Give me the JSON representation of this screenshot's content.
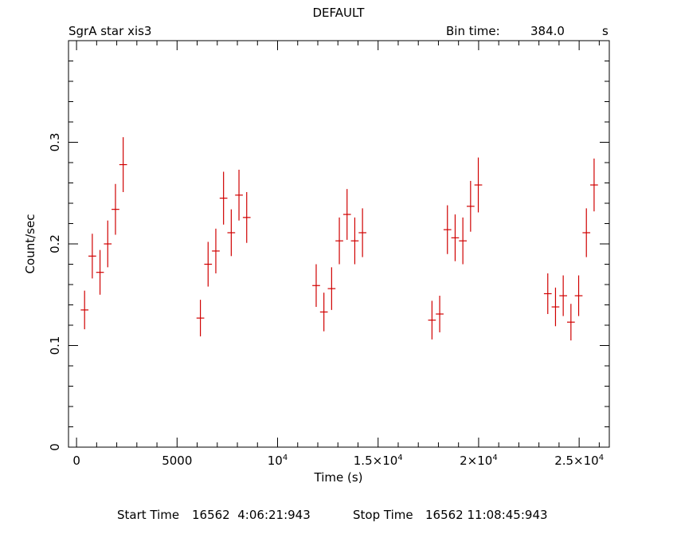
{
  "header": {
    "title": "DEFAULT",
    "source": "SgrA star xis3",
    "bin_time_label": "Bin time:",
    "bin_time_value": "384.0",
    "bin_time_unit": "s"
  },
  "footer": {
    "start_label": "Start Time",
    "start_value": "16562  4:06:21:943",
    "stop_label": "Stop Time",
    "stop_value": "16562 11:08:45:943"
  },
  "colors": {
    "data": "#d00000",
    "axis": "#000000"
  },
  "chart_data": {
    "type": "scatter",
    "title": "DEFAULT",
    "xlabel": "Time (s)",
    "ylabel": "Count/sec",
    "xlim": [
      -400,
      26500
    ],
    "ylim": [
      0,
      0.4
    ],
    "grid": false,
    "x_ticks": [
      {
        "value": 0,
        "label": "0"
      },
      {
        "value": 5000,
        "label": "5000"
      },
      {
        "value": 10000,
        "label": "10",
        "sup": "4"
      },
      {
        "value": 15000,
        "label": "1.5×10",
        "sup": "4"
      },
      {
        "value": 20000,
        "label": "2×10",
        "sup": "4"
      },
      {
        "value": 25000,
        "label": "2.5×10",
        "sup": "4"
      }
    ],
    "y_ticks": [
      {
        "value": 0,
        "label": "0"
      },
      {
        "value": 0.1,
        "label": "0.1"
      },
      {
        "value": 0.2,
        "label": "0.2"
      },
      {
        "value": 0.3,
        "label": "0.3"
      }
    ],
    "x_error": 192,
    "points": [
      {
        "x": 400,
        "y": 0.135,
        "yerr": 0.019
      },
      {
        "x": 784,
        "y": 0.188,
        "yerr": 0.022
      },
      {
        "x": 1168,
        "y": 0.172,
        "yerr": 0.022
      },
      {
        "x": 1552,
        "y": 0.2,
        "yerr": 0.023
      },
      {
        "x": 1936,
        "y": 0.234,
        "yerr": 0.025
      },
      {
        "x": 2320,
        "y": 0.278,
        "yerr": 0.027
      },
      {
        "x": 6160,
        "y": 0.127,
        "yerr": 0.018
      },
      {
        "x": 6544,
        "y": 0.18,
        "yerr": 0.022
      },
      {
        "x": 6928,
        "y": 0.193,
        "yerr": 0.022
      },
      {
        "x": 7312,
        "y": 0.245,
        "yerr": 0.026
      },
      {
        "x": 7696,
        "y": 0.211,
        "yerr": 0.023
      },
      {
        "x": 8080,
        "y": 0.248,
        "yerr": 0.025
      },
      {
        "x": 8464,
        "y": 0.226,
        "yerr": 0.025
      },
      {
        "x": 11920,
        "y": 0.159,
        "yerr": 0.021
      },
      {
        "x": 12304,
        "y": 0.133,
        "yerr": 0.019
      },
      {
        "x": 12688,
        "y": 0.156,
        "yerr": 0.021
      },
      {
        "x": 13072,
        "y": 0.203,
        "yerr": 0.023
      },
      {
        "x": 13456,
        "y": 0.229,
        "yerr": 0.025
      },
      {
        "x": 13840,
        "y": 0.203,
        "yerr": 0.023
      },
      {
        "x": 14224,
        "y": 0.211,
        "yerr": 0.024
      },
      {
        "x": 17680,
        "y": 0.125,
        "yerr": 0.019
      },
      {
        "x": 18064,
        "y": 0.131,
        "yerr": 0.018
      },
      {
        "x": 18448,
        "y": 0.214,
        "yerr": 0.024
      },
      {
        "x": 18832,
        "y": 0.206,
        "yerr": 0.023
      },
      {
        "x": 19216,
        "y": 0.203,
        "yerr": 0.023
      },
      {
        "x": 19600,
        "y": 0.237,
        "yerr": 0.025
      },
      {
        "x": 19984,
        "y": 0.258,
        "yerr": 0.027
      },
      {
        "x": 23440,
        "y": 0.151,
        "yerr": 0.02
      },
      {
        "x": 23824,
        "y": 0.138,
        "yerr": 0.019
      },
      {
        "x": 24208,
        "y": 0.149,
        "yerr": 0.02
      },
      {
        "x": 24592,
        "y": 0.123,
        "yerr": 0.018
      },
      {
        "x": 24976,
        "y": 0.149,
        "yerr": 0.02
      },
      {
        "x": 25360,
        "y": 0.211,
        "yerr": 0.024
      },
      {
        "x": 25744,
        "y": 0.258,
        "yerr": 0.026
      }
    ]
  }
}
